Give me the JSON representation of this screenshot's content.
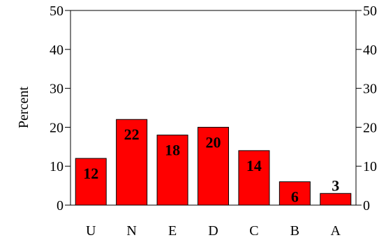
{
  "chart_data": {
    "type": "bar",
    "categories": [
      "U",
      "N",
      "E",
      "D",
      "C",
      "B",
      "A"
    ],
    "values": [
      12,
      22,
      18,
      20,
      14,
      6,
      3
    ],
    "data_labels": [
      "12",
      "22",
      "18",
      "20",
      "14",
      "6",
      "3"
    ],
    "ylabel": "Percent",
    "xlabel": "",
    "title": "",
    "ylim": [
      0,
      50
    ],
    "yticks": [
      0,
      10,
      20,
      30,
      40,
      50
    ],
    "ytick_labels": [
      "0",
      "10",
      "20",
      "30",
      "40",
      "50"
    ],
    "right_axis_ticks": true,
    "grid": false,
    "bar_color": "#ff0000",
    "bar_edge_color": "#000000"
  }
}
